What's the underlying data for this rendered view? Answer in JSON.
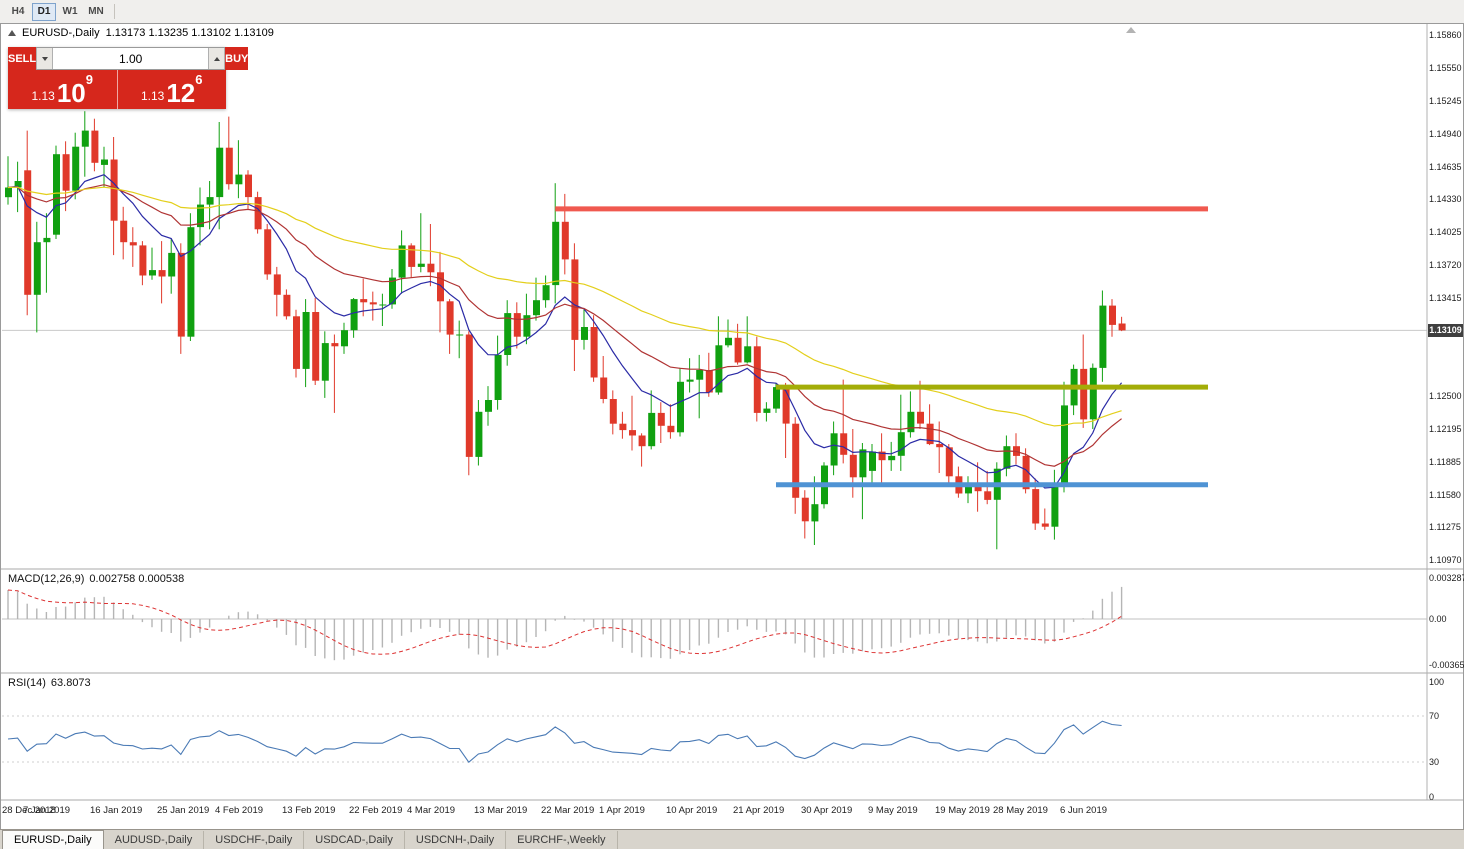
{
  "toolbar": {
    "timeframes": [
      {
        "label": "H4",
        "active": false
      },
      {
        "label": "D1",
        "active": true
      },
      {
        "label": "W1",
        "active": false
      },
      {
        "label": "MN",
        "active": false
      }
    ]
  },
  "chart": {
    "title": "EURUSD-,Daily",
    "ohlc": "1.13173 1.13235 1.13102 1.13109",
    "current_price": "1.13109",
    "price_axis": [
      "1.15860",
      "1.15550",
      "1.15245",
      "1.14940",
      "1.14635",
      "1.14330",
      "1.14025",
      "1.13720",
      "1.13415",
      "1.12500",
      "1.12195",
      "1.11885",
      "1.11580",
      "1.11275",
      "1.10970"
    ],
    "trade_panel": {
      "sell_label": "SELL",
      "buy_label": "BUY",
      "volume": "1.00",
      "sell_price": {
        "base": "1.13",
        "big": "10",
        "sup": "9"
      },
      "buy_price": {
        "base": "1.13",
        "big": "12",
        "sup": "6"
      }
    },
    "colors": {
      "bull": "#10a010",
      "bear": "#e0392a",
      "ma_fast": "#2b2ba6",
      "ma_mid": "#b03434",
      "ma_slow": "#e3cf1b",
      "macd_hist": "#b5b5b5",
      "macd_signal": "#dd3333",
      "rsi": "#4a7ab5",
      "accent_red": "#d6271c",
      "badge_bg": "#3f3f3f"
    }
  },
  "chart_data": {
    "type": "candlestick",
    "symbol": "EURUSD-",
    "timeframe": "Daily",
    "price_range": [
      1.1097,
      1.1586
    ],
    "candles": [
      [
        1.1435,
        1.1473,
        1.1428,
        1.1444
      ],
      [
        1.1444,
        1.1468,
        1.1421,
        1.145
      ],
      [
        1.146,
        1.1497,
        1.1325,
        1.1344
      ],
      [
        1.1344,
        1.1412,
        1.1309,
        1.1393
      ],
      [
        1.1393,
        1.142,
        1.1346,
        1.1397
      ],
      [
        1.14,
        1.1483,
        1.1396,
        1.1475
      ],
      [
        1.1475,
        1.1487,
        1.1422,
        1.1441
      ],
      [
        1.1441,
        1.1495,
        1.1433,
        1.1482
      ],
      [
        1.1482,
        1.1515,
        1.1454,
        1.1497
      ],
      [
        1.1497,
        1.1508,
        1.1459,
        1.1467
      ],
      [
        1.1465,
        1.1482,
        1.1444,
        1.147
      ],
      [
        1.147,
        1.1491,
        1.1381,
        1.1413
      ],
      [
        1.1413,
        1.1426,
        1.1377,
        1.1393
      ],
      [
        1.1393,
        1.1407,
        1.137,
        1.139
      ],
      [
        1.139,
        1.1394,
        1.1353,
        1.1362
      ],
      [
        1.1362,
        1.1388,
        1.1358,
        1.1367
      ],
      [
        1.1367,
        1.1394,
        1.1336,
        1.1361
      ],
      [
        1.1361,
        1.1396,
        1.1345,
        1.1383
      ],
      [
        1.1383,
        1.1392,
        1.1289,
        1.1305
      ],
      [
        1.1305,
        1.142,
        1.1301,
        1.1407
      ],
      [
        1.1407,
        1.1444,
        1.139,
        1.1428
      ],
      [
        1.1428,
        1.145,
        1.1405,
        1.1435
      ],
      [
        1.1435,
        1.1505,
        1.1405,
        1.1481
      ],
      [
        1.1481,
        1.151,
        1.1442,
        1.1447
      ],
      [
        1.1447,
        1.1488,
        1.1434,
        1.1456
      ],
      [
        1.1456,
        1.146,
        1.1424,
        1.1435
      ],
      [
        1.1435,
        1.144,
        1.1401,
        1.1405
      ],
      [
        1.1405,
        1.141,
        1.1358,
        1.1363
      ],
      [
        1.1363,
        1.137,
        1.1324,
        1.1344
      ],
      [
        1.1344,
        1.1349,
        1.1321,
        1.1324
      ],
      [
        1.1324,
        1.133,
        1.1267,
        1.1275
      ],
      [
        1.1275,
        1.134,
        1.1258,
        1.1328
      ],
      [
        1.1328,
        1.1341,
        1.126,
        1.1264
      ],
      [
        1.1264,
        1.131,
        1.1248,
        1.1299
      ],
      [
        1.1299,
        1.1307,
        1.1234,
        1.1296
      ],
      [
        1.1296,
        1.1318,
        1.1289,
        1.1311
      ],
      [
        1.1311,
        1.1341,
        1.1304,
        1.134
      ],
      [
        1.134,
        1.1359,
        1.1324,
        1.1337
      ],
      [
        1.1337,
        1.1347,
        1.132,
        1.1335
      ],
      [
        1.1335,
        1.1345,
        1.1315,
        1.1335
      ],
      [
        1.1335,
        1.1368,
        1.1331,
        1.136
      ],
      [
        1.136,
        1.1404,
        1.1345,
        1.139
      ],
      [
        1.139,
        1.1392,
        1.136,
        1.137
      ],
      [
        1.137,
        1.142,
        1.1365,
        1.1373
      ],
      [
        1.1373,
        1.141,
        1.1352,
        1.1365
      ],
      [
        1.1365,
        1.1384,
        1.1309,
        1.1338
      ],
      [
        1.1338,
        1.134,
        1.1289,
        1.1307
      ],
      [
        1.1307,
        1.132,
        1.1285,
        1.1307
      ],
      [
        1.1307,
        1.131,
        1.1176,
        1.1193
      ],
      [
        1.1193,
        1.1246,
        1.1185,
        1.1235
      ],
      [
        1.1235,
        1.1259,
        1.1222,
        1.1246
      ],
      [
        1.1246,
        1.1306,
        1.1237,
        1.1288
      ],
      [
        1.1288,
        1.1339,
        1.1278,
        1.1327
      ],
      [
        1.1327,
        1.1337,
        1.1294,
        1.1305
      ],
      [
        1.1305,
        1.1345,
        1.1298,
        1.1325
      ],
      [
        1.1325,
        1.136,
        1.132,
        1.1339
      ],
      [
        1.1339,
        1.1362,
        1.1332,
        1.1353
      ],
      [
        1.1353,
        1.1448,
        1.1336,
        1.1412
      ],
      [
        1.1412,
        1.1438,
        1.1363,
        1.1377
      ],
      [
        1.1377,
        1.1392,
        1.1273,
        1.1302
      ],
      [
        1.1302,
        1.133,
        1.1293,
        1.1314
      ],
      [
        1.1314,
        1.1325,
        1.1263,
        1.1267
      ],
      [
        1.1267,
        1.1287,
        1.1243,
        1.1247
      ],
      [
        1.1247,
        1.1255,
        1.1214,
        1.1224
      ],
      [
        1.1224,
        1.1235,
        1.121,
        1.1218
      ],
      [
        1.1218,
        1.125,
        1.1199,
        1.1213
      ],
      [
        1.1213,
        1.1215,
        1.1184,
        1.1203
      ],
      [
        1.1203,
        1.1255,
        1.12,
        1.1234
      ],
      [
        1.1234,
        1.1244,
        1.1206,
        1.1222
      ],
      [
        1.1222,
        1.1242,
        1.121,
        1.1216
      ],
      [
        1.1216,
        1.1276,
        1.1212,
        1.1263
      ],
      [
        1.1263,
        1.1285,
        1.1253,
        1.1265
      ],
      [
        1.1265,
        1.1288,
        1.1229,
        1.1274
      ],
      [
        1.1274,
        1.129,
        1.1249,
        1.1253
      ],
      [
        1.1253,
        1.1324,
        1.1251,
        1.1297
      ],
      [
        1.1297,
        1.1321,
        1.1295,
        1.1304
      ],
      [
        1.1304,
        1.1317,
        1.1279,
        1.1281
      ],
      [
        1.1281,
        1.1324,
        1.128,
        1.1296
      ],
      [
        1.1296,
        1.1305,
        1.1226,
        1.1234
      ],
      [
        1.1234,
        1.1244,
        1.1226,
        1.1238
      ],
      [
        1.1238,
        1.1262,
        1.1234,
        1.1258
      ],
      [
        1.1258,
        1.1262,
        1.1192,
        1.1224
      ],
      [
        1.1224,
        1.123,
        1.114,
        1.1155
      ],
      [
        1.1155,
        1.1162,
        1.1117,
        1.1133
      ],
      [
        1.1133,
        1.1175,
        1.1111,
        1.1149
      ],
      [
        1.1149,
        1.1188,
        1.1145,
        1.1185
      ],
      [
        1.1185,
        1.1226,
        1.1176,
        1.1215
      ],
      [
        1.1215,
        1.1265,
        1.1187,
        1.1195
      ],
      [
        1.1195,
        1.1219,
        1.1155,
        1.1174
      ],
      [
        1.1174,
        1.1206,
        1.1135,
        1.12
      ],
      [
        1.118,
        1.1205,
        1.1166,
        1.1198
      ],
      [
        1.1198,
        1.1215,
        1.1167,
        1.119
      ],
      [
        1.119,
        1.1207,
        1.118,
        1.1194
      ],
      [
        1.1194,
        1.1251,
        1.118,
        1.1216
      ],
      [
        1.1216,
        1.1254,
        1.1211,
        1.1235
      ],
      [
        1.1235,
        1.1264,
        1.1219,
        1.1224
      ],
      [
        1.1224,
        1.1242,
        1.1204,
        1.1205
      ],
      [
        1.1205,
        1.1226,
        1.1178,
        1.1202
      ],
      [
        1.1202,
        1.1205,
        1.1165,
        1.1175
      ],
      [
        1.1175,
        1.1184,
        1.1155,
        1.1159
      ],
      [
        1.1159,
        1.1175,
        1.115,
        1.1167
      ],
      [
        1.1167,
        1.1188,
        1.1142,
        1.1161
      ],
      [
        1.1161,
        1.118,
        1.1149,
        1.1153
      ],
      [
        1.1153,
        1.1188,
        1.1107,
        1.1182
      ],
      [
        1.1182,
        1.1213,
        1.1175,
        1.1203
      ],
      [
        1.1203,
        1.1215,
        1.1186,
        1.1194
      ],
      [
        1.1194,
        1.1201,
        1.1159,
        1.1163
      ],
      [
        1.1163,
        1.1173,
        1.1125,
        1.1131
      ],
      [
        1.1131,
        1.1145,
        1.1125,
        1.1128
      ],
      [
        1.1128,
        1.1181,
        1.1116,
        1.1168
      ],
      [
        1.1168,
        1.1263,
        1.116,
        1.1241
      ],
      [
        1.1241,
        1.1279,
        1.1232,
        1.1275
      ],
      [
        1.1275,
        1.1307,
        1.122,
        1.1228
      ],
      [
        1.1228,
        1.128,
        1.1219,
        1.1276
      ],
      [
        1.1276,
        1.1348,
        1.1263,
        1.1334
      ],
      [
        1.1334,
        1.134,
        1.1305,
        1.1316
      ],
      [
        1.13173,
        1.13235,
        1.13102,
        1.13109
      ]
    ],
    "date_ticks": [
      {
        "i": 0,
        "label": "28 Dec 2018"
      },
      {
        "i": 5,
        "label": "7 Jan 2019"
      },
      {
        "i": 12,
        "label": "16 Jan 2019"
      },
      {
        "i": 19,
        "label": "25 Jan 2019"
      },
      {
        "i": 25,
        "label": "4 Feb 2019"
      },
      {
        "i": 32,
        "label": "13 Feb 2019"
      },
      {
        "i": 39,
        "label": "22 Feb 2019"
      },
      {
        "i": 45,
        "label": "4 Mar 2019"
      },
      {
        "i": 52,
        "label": "13 Mar 2019"
      },
      {
        "i": 59,
        "label": "22 Mar 2019"
      },
      {
        "i": 65,
        "label": "1 Apr 2019"
      },
      {
        "i": 72,
        "label": "10 Apr 2019"
      },
      {
        "i": 79,
        "label": "21 Apr 2019"
      },
      {
        "i": 86,
        "label": "30 Apr 2019"
      },
      {
        "i": 93,
        "label": "9 May 2019"
      },
      {
        "i": 100,
        "label": "19 May 2019"
      },
      {
        "i": 106,
        "label": "28 May 2019"
      },
      {
        "i": 113,
        "label": "6 Jun 2019"
      }
    ],
    "moving_averages": [
      {
        "period": 10,
        "color": "#2b2ba6"
      },
      {
        "period": 25,
        "color": "#b03434"
      },
      {
        "period": 55,
        "color": "#e3cf1b"
      }
    ],
    "hlines": [
      {
        "name": "resistance-line-red",
        "price": 1.1424,
        "from_index": 57,
        "to_index": 125,
        "color": "#f0594f",
        "width": 5
      },
      {
        "name": "resistance-line-olive",
        "price": 1.1258,
        "from_index": 80,
        "to_index": 125,
        "color": "#a3ad08",
        "width": 5
      },
      {
        "name": "support-line-blue",
        "price": 1.1167,
        "from_index": 80,
        "to_index": 125,
        "color": "#4f93d4",
        "width": 5
      }
    ],
    "macd": {
      "label": "MACD(12,26,9)",
      "values": "0.002758 0.000538",
      "axis": [
        "0.003287",
        "0.00",
        "-0.003659"
      ]
    },
    "rsi": {
      "label": "RSI(14)",
      "value": "63.8073",
      "axis": [
        "100",
        "70",
        "30",
        "0"
      ]
    }
  },
  "tabs": [
    {
      "label": "EURUSD-,Daily",
      "active": true
    },
    {
      "label": "AUDUSD-,Daily",
      "active": false
    },
    {
      "label": "USDCHF-,Daily",
      "active": false
    },
    {
      "label": "USDCAD-,Daily",
      "active": false
    },
    {
      "label": "USDCNH-,Daily",
      "active": false
    },
    {
      "label": "EURCHF-,Weekly",
      "active": false
    }
  ]
}
